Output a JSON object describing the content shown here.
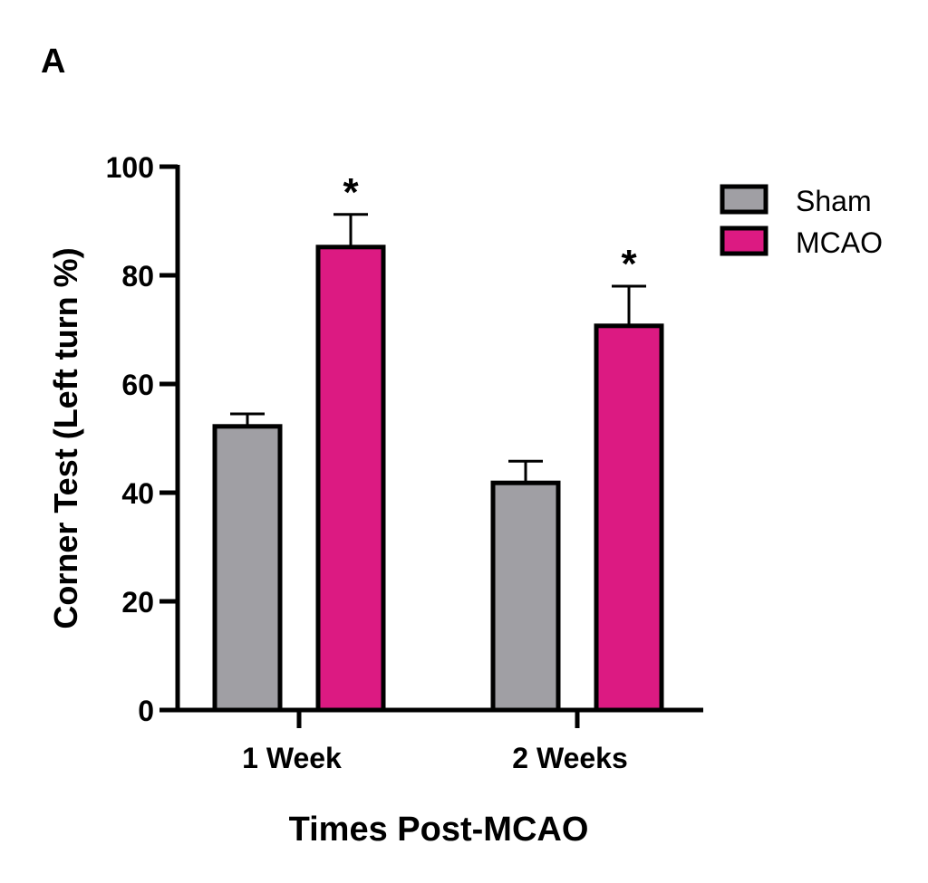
{
  "panel_label": "A",
  "chart_data": {
    "type": "bar",
    "title": "",
    "xlabel": "Times Post-MCAO",
    "ylabel": "Corner Test (Left turn %)",
    "categories": [
      "1 Week",
      "2 Weeks"
    ],
    "series": [
      {
        "name": "Sham",
        "color": "#a09fa4",
        "values": [
          52.2,
          41.8
        ],
        "error": [
          2.3,
          4.0
        ],
        "significance": [
          "",
          ""
        ]
      },
      {
        "name": "MCAO",
        "color": "#dc1a82",
        "values": [
          85.2,
          70.7
        ],
        "error": [
          6.0,
          7.3
        ],
        "significance": [
          "*",
          "*"
        ]
      }
    ],
    "ylim": [
      0,
      100
    ],
    "yticks": [
      0,
      20,
      40,
      60,
      80,
      100
    ],
    "ytick_labels": [
      "0",
      "20",
      "40",
      "60",
      "80",
      "100"
    ],
    "grid": false,
    "legend_position": "top-right"
  }
}
